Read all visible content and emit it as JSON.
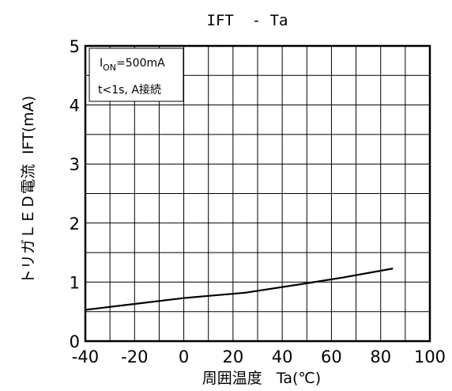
{
  "chart_data": {
    "type": "line",
    "title": "IFT  - Ta",
    "xlabel": "周囲温度   Ta(℃)",
    "ylabel": "トリガＬＥＤ電流  IFT(mA)",
    "xlim": [
      -40,
      100
    ],
    "ylim": [
      0,
      5
    ],
    "x_ticks": [
      -40,
      -20,
      0,
      20,
      40,
      60,
      80,
      100
    ],
    "y_ticks": [
      0,
      1,
      2,
      3,
      4,
      5
    ],
    "grid": true,
    "annotation": {
      "line1": {
        "base": "I",
        "sub": "ON",
        "rest": "=500mA"
      },
      "line2": "t<1s, A接続"
    },
    "series": [
      {
        "x": [
          -40,
          -20,
          0,
          25,
          50,
          65,
          85
        ],
        "y": [
          0.53,
          0.63,
          0.73,
          0.82,
          0.98,
          1.08,
          1.23
        ]
      }
    ],
    "colors": {
      "line": "#000000",
      "grid": "#000000",
      "background": "#ffffff"
    }
  }
}
